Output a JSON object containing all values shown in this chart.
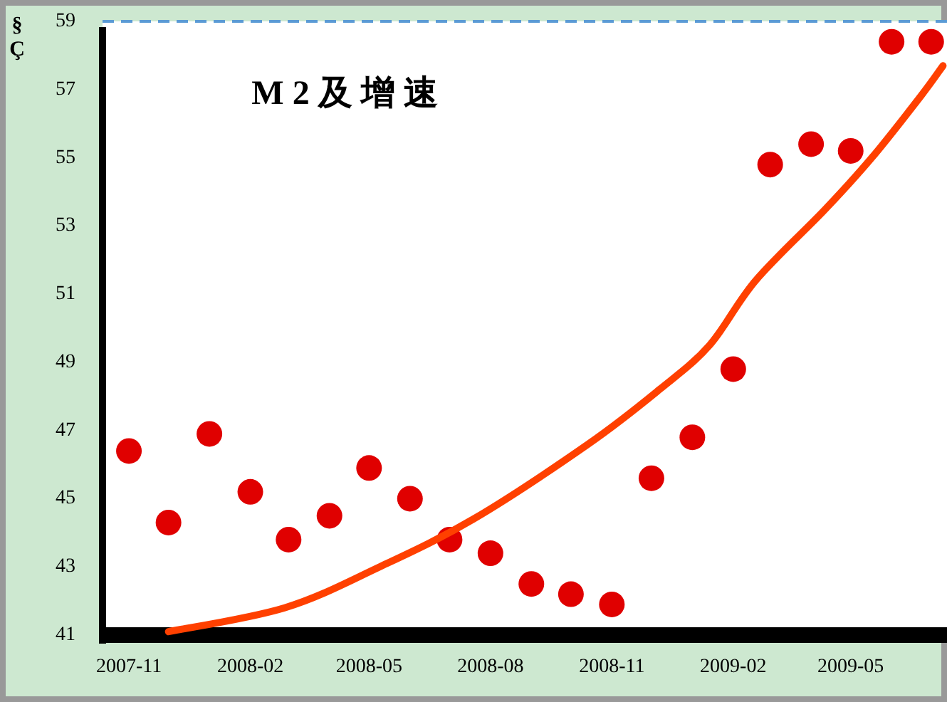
{
  "chart_data": {
    "type": "scatter",
    "title": "M2及增速",
    "ylabel": "§Ç",
    "x": [
      "2007-11",
      "2007-12",
      "2008-01",
      "2008-02",
      "2008-03",
      "2008-04",
      "2008-05",
      "2008-06",
      "2008-07",
      "2008-08",
      "2008-09",
      "2008-10",
      "2008-11",
      "2008-12",
      "2009-01",
      "2009-02",
      "2009-03",
      "2009-04",
      "2009-05",
      "2009-06",
      "2009-07"
    ],
    "series": [
      {
        "marker": "circle",
        "color": "#e00000",
        "values": [
          46.4,
          44.3,
          46.9,
          45.2,
          43.8,
          44.5,
          45.9,
          45.0,
          43.8,
          43.4,
          42.5,
          42.2,
          41.9,
          45.6,
          46.8,
          48.8,
          54.8,
          55.4,
          55.2,
          58.4,
          58.4
        ]
      },
      {
        "type": "line",
        "marker": "none",
        "color": "#ff4000",
        "x": [
          "2007-12-01",
          "2008-02-27",
          "2008-05-09",
          "2008-07-19",
          "2008-10-14",
          "2008-12-07",
          "2009-01-14",
          "2009-02-18",
          "2009-04-12",
          "2009-05-17",
          "2009-06-23",
          "2009-07-10"
        ],
        "values": [
          41.1,
          41.8,
          43.0,
          44.4,
          46.6,
          48.2,
          49.5,
          51.4,
          53.5,
          55.0,
          56.8,
          57.7
        ]
      }
    ],
    "xlim": [
      "2007-10-12",
      "2009-07-13"
    ],
    "xticks": [
      "2007-11",
      "2008-02",
      "2008-05",
      "2008-08",
      "2008-11",
      "2009-02",
      "2009-05"
    ],
    "ylim": [
      41,
      59
    ],
    "yticks": [
      41,
      43,
      45,
      47,
      49,
      51,
      53,
      55,
      57,
      59
    ],
    "ref_lines": [
      {
        "axis": "y",
        "value": 59,
        "color": "#5b9bd5",
        "line_style": "dashed"
      }
    ]
  }
}
